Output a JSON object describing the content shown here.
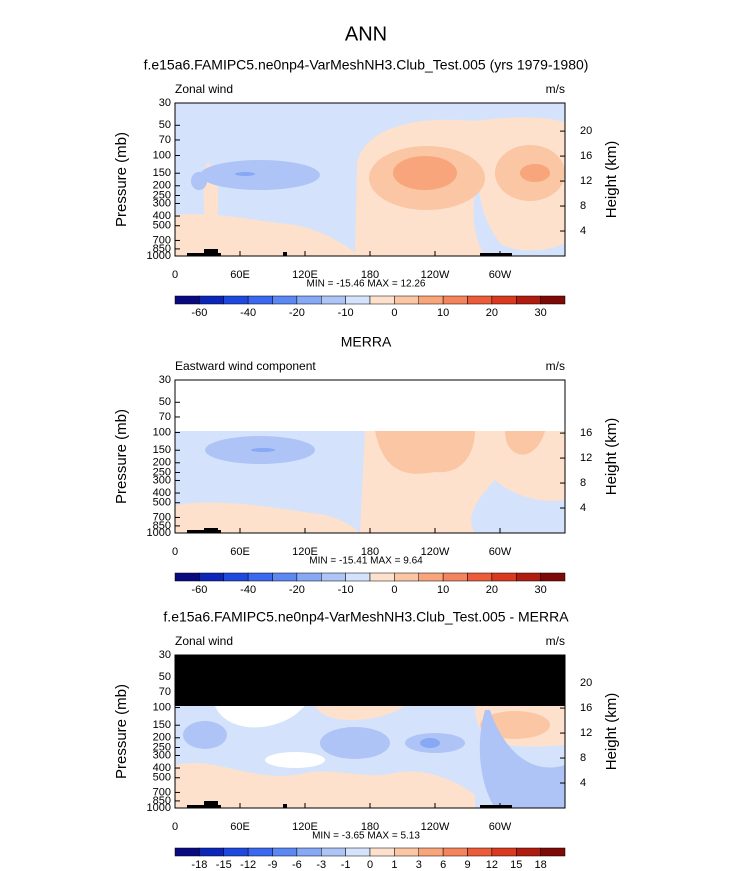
{
  "title": "ANN",
  "chart_data": [
    {
      "type": "contour",
      "title": "f.e15a6.FAMIPC5.ne0np4-VarMeshNH3.Club_Test.005 (yrs 1979-1980)",
      "left_label": "Zonal wind",
      "right_label": "m/s",
      "ylabel": "Pressure (mb)",
      "y2label": "Height (km)",
      "xlim": [
        0,
        360
      ],
      "xticks": [
        0,
        {
          "value": 60,
          "label": "60E"
        },
        {
          "value": 120,
          "label": "120E"
        },
        180,
        {
          "value": 240,
          "label": "120W"
        },
        {
          "value": 300,
          "label": "60W"
        }
      ],
      "ylim": [
        1000,
        30
      ],
      "log_y": true,
      "yticks": [
        30,
        50,
        70,
        100,
        150,
        200,
        250,
        300,
        400,
        500,
        700,
        850,
        1000
      ],
      "y2lim": [
        0,
        24.5
      ],
      "y2ticks": [
        4,
        8,
        12,
        16,
        20
      ],
      "stats": "MIN = -15.46  MAX = 12.26",
      "colorbar": {
        "ticks": [
          -60,
          -40,
          -20,
          -10,
          0,
          10,
          20,
          30
        ],
        "colors": [
          "#0a0a80",
          "#0c26b8",
          "#1f48de",
          "#3a68ef",
          "#5c88f4",
          "#86a8f5",
          "#aec4f6",
          "#d4e3fb",
          "#fde1cc",
          "#fbc6a3",
          "#f8a57c",
          "#f3845e",
          "#ec5c3b",
          "#d8391f",
          "#b01d10",
          "#7d0a06"
        ]
      }
    },
    {
      "type": "contour",
      "title": "MERRA",
      "left_label": "Eastward wind component",
      "right_label": "m/s",
      "ylabel": "Pressure (mb)",
      "y2label": "Height (km)",
      "xlim": [
        0,
        360
      ],
      "xticks": [
        0,
        {
          "value": 60,
          "label": "60E"
        },
        {
          "value": 120,
          "label": "120E"
        },
        180,
        {
          "value": 240,
          "label": "120W"
        },
        {
          "value": 300,
          "label": "60W"
        }
      ],
      "ylim": [
        1000,
        30
      ],
      "log_y": true,
      "yticks": [
        30,
        50,
        70,
        100,
        150,
        200,
        250,
        300,
        400,
        500,
        700,
        850,
        1000
      ],
      "y2lim": [
        0,
        24.5
      ],
      "y2ticks": [
        4,
        8,
        12,
        16
      ],
      "stats": "MIN = -15.41  MAX =  9.64",
      "colorbar": {
        "ticks": [
          -60,
          -40,
          -20,
          -10,
          0,
          10,
          20,
          30
        ],
        "colors": [
          "#0a0a80",
          "#0c26b8",
          "#1f48de",
          "#3a68ef",
          "#5c88f4",
          "#86a8f5",
          "#aec4f6",
          "#d4e3fb",
          "#fde1cc",
          "#fbc6a3",
          "#f8a57c",
          "#f3845e",
          "#ec5c3b",
          "#d8391f",
          "#b01d10",
          "#7d0a06"
        ]
      }
    },
    {
      "type": "contour",
      "title": "f.e15a6.FAMIPC5.ne0np4-VarMeshNH3.Club_Test.005 - MERRA",
      "left_label": "Zonal wind",
      "right_label": "m/s",
      "ylabel": "Pressure (mb)",
      "y2label": "Height (km)",
      "xlim": [
        0,
        360
      ],
      "xticks": [
        0,
        {
          "value": 60,
          "label": "60E"
        },
        {
          "value": 120,
          "label": "120E"
        },
        180,
        {
          "value": 240,
          "label": "120W"
        },
        {
          "value": 300,
          "label": "60W"
        }
      ],
      "ylim": [
        1000,
        30
      ],
      "log_y": true,
      "yticks": [
        30,
        50,
        70,
        100,
        150,
        200,
        250,
        300,
        400,
        500,
        700,
        850,
        1000
      ],
      "y2lim": [
        0,
        24.5
      ],
      "y2ticks": [
        4,
        8,
        12,
        16,
        20
      ],
      "stats": "MIN = -3.65  MAX =  5.13",
      "colorbar": {
        "ticks": [
          -18,
          -15,
          -12,
          -9,
          -6,
          -3,
          -1,
          0,
          1,
          3,
          6,
          9,
          12,
          15,
          18
        ],
        "colors": [
          "#0a0a80",
          "#0c26b8",
          "#1f48de",
          "#3a68ef",
          "#5c88f4",
          "#86a8f5",
          "#aec4f6",
          "#d4e3fb",
          "#fde1cc",
          "#fbc6a3",
          "#f8a57c",
          "#f3845e",
          "#ec5c3b",
          "#d8391f",
          "#b01d10",
          "#7d0a06"
        ]
      }
    }
  ]
}
